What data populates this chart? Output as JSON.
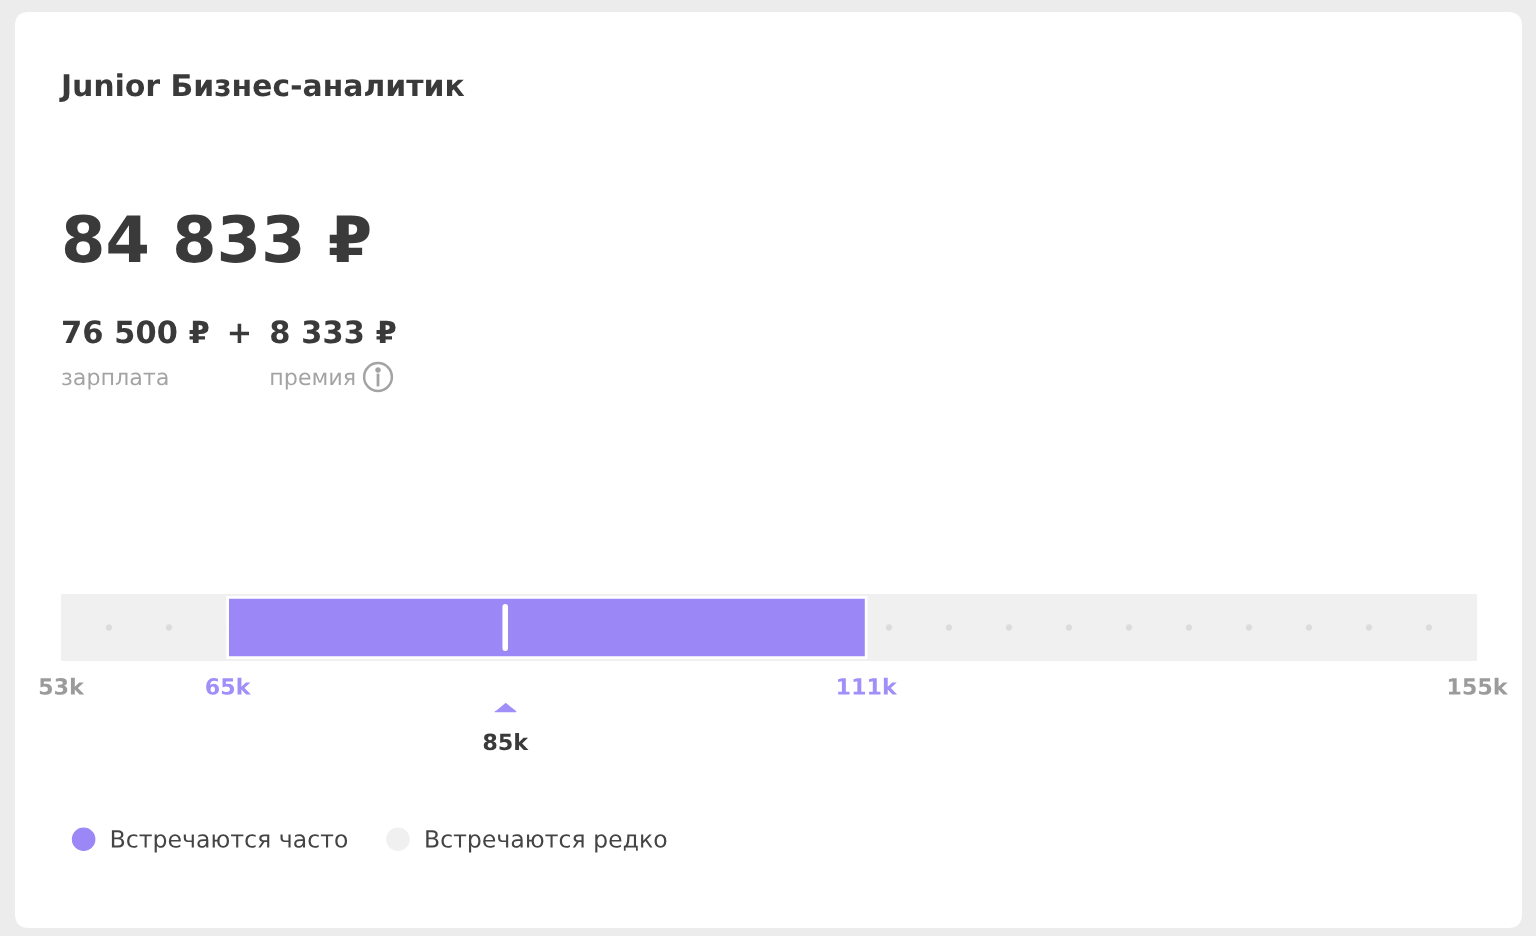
{
  "chart_data": {
    "type": "bar",
    "orientation": "horizontal",
    "title": "Junior Бизнес-аналитик",
    "subtitle": "84 833 ₽",
    "categories": [
      null
    ],
    "series": [
      {
        "name": "Встречаются часто",
        "color": "#9b88f6",
        "base": [
          65
        ],
        "values": [
          46
        ]
      },
      {
        "name": "Встречаются редко",
        "color": "#f0f0f0",
        "base": [
          53
        ],
        "values": [
          102
        ]
      }
    ],
    "xlim": [
      53,
      155
    ],
    "xticks": [
      {
        "value": 53,
        "label": "53k"
      },
      {
        "value": 65,
        "label": "65k"
      },
      {
        "value": 111,
        "label": "111k"
      },
      {
        "value": 155,
        "label": "155k"
      }
    ],
    "ref_lines": [
      {
        "axis": "x",
        "value": 85,
        "color": "#ffffff"
      }
    ],
    "annotations": [
      "76 500 ₽",
      "+",
      "8 333 ₽",
      "зарплата",
      "премия",
      "85k"
    ],
    "legend": "bottom left",
    "tick_labels": "x"
  }
}
